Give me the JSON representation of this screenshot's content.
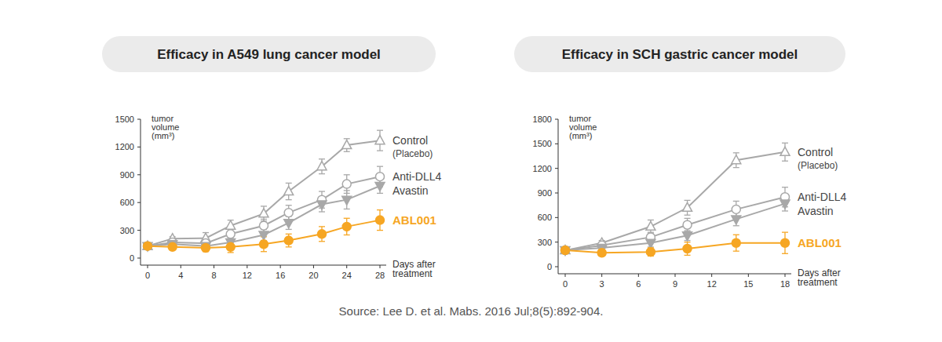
{
  "chart_data": [
    {
      "type": "line",
      "title": "Efficacy in A549 lung cancer model",
      "x_label": "Days after treatment",
      "y_label": "tumor volume (mm³)",
      "x": [
        0,
        3,
        7,
        10,
        14,
        17,
        21,
        24,
        28
      ],
      "xlim": [
        0,
        28
      ],
      "xticks": [
        0,
        4,
        8,
        12,
        16,
        20,
        24,
        28
      ],
      "ylim": [
        0,
        1500
      ],
      "yticks": [
        0,
        300,
        600,
        900,
        1200,
        1500
      ],
      "series": [
        {
          "name": "Control (Placebo)",
          "color": "#a8a8a8",
          "marker": "triangle-open",
          "values": [
            130,
            210,
            215,
            350,
            480,
            720,
            990,
            1220,
            1270
          ],
          "errors": [
            0,
            20,
            60,
            60,
            80,
            90,
            80,
            70,
            110
          ]
        },
        {
          "name": "Anti-DLL4",
          "color": "#a8a8a8",
          "marker": "circle-open",
          "values": [
            130,
            170,
            160,
            260,
            350,
            490,
            630,
            800,
            880
          ],
          "errors": [
            0,
            20,
            50,
            50,
            70,
            80,
            90,
            100,
            110
          ]
        },
        {
          "name": "Avastin",
          "color": "#a8a8a8",
          "marker": "triangle-down",
          "values": [
            130,
            150,
            130,
            170,
            250,
            380,
            580,
            630,
            780
          ],
          "errors": [
            0,
            20,
            40,
            40,
            60,
            70,
            80,
            100,
            80
          ]
        },
        {
          "name": "ABL001",
          "color": "#f6a623",
          "marker": "circle",
          "values": [
            130,
            120,
            110,
            120,
            150,
            190,
            260,
            340,
            410
          ],
          "errors": [
            0,
            20,
            40,
            60,
            80,
            70,
            80,
            90,
            110
          ]
        }
      ]
    },
    {
      "type": "line",
      "title": "Efficacy in SCH gastric cancer model",
      "x_label": "Days after treatment",
      "y_label": "tumor volume (mm³)",
      "x": [
        0,
        3,
        7,
        10,
        14,
        18
      ],
      "xlim": [
        0,
        18
      ],
      "xticks": [
        0,
        3,
        6,
        9,
        12,
        15,
        18
      ],
      "ylim": [
        0,
        1800
      ],
      "yticks": [
        0,
        300,
        600,
        900,
        1200,
        1500,
        1800
      ],
      "series": [
        {
          "name": "Control (Placebo)",
          "color": "#a8a8a8",
          "marker": "triangle-open",
          "values": [
            200,
            290,
            490,
            720,
            1300,
            1400
          ],
          "errors": [
            0,
            30,
            80,
            90,
            90,
            110
          ]
        },
        {
          "name": "Anti-DLL4",
          "color": "#a8a8a8",
          "marker": "circle-open",
          "values": [
            200,
            260,
            360,
            510,
            700,
            850
          ],
          "errors": [
            0,
            30,
            60,
            80,
            100,
            120
          ]
        },
        {
          "name": "Avastin",
          "color": "#a8a8a8",
          "marker": "triangle-down",
          "values": [
            200,
            230,
            290,
            380,
            580,
            770
          ],
          "errors": [
            0,
            20,
            50,
            60,
            80,
            90
          ]
        },
        {
          "name": "ABL001",
          "color": "#f6a623",
          "marker": "circle",
          "values": [
            200,
            170,
            180,
            220,
            290,
            290
          ],
          "errors": [
            0,
            30,
            50,
            80,
            100,
            130
          ]
        }
      ]
    }
  ],
  "source": "Source: Lee D. et al. Mabs. 2016 Jul;8(5):892-904."
}
